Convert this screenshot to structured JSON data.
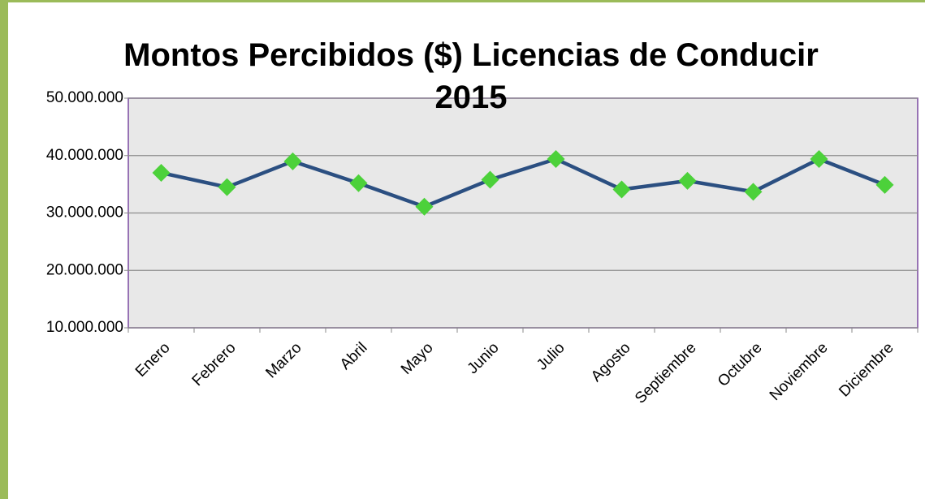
{
  "chart_data": {
    "type": "line",
    "title": "Montos Percibidos ($) Licencias de Conducir 2015",
    "categories": [
      "Enero",
      "Febrero",
      "Marzo",
      "Abril",
      "Mayo",
      "Junio",
      "Julio",
      "Agosto",
      "Septiembre",
      "Octubre",
      "Noviembre",
      "Diciembre"
    ],
    "series": [
      {
        "color": "#2b4f81",
        "marker_color": "#4cd13a",
        "values": [
          37000000,
          34500000,
          39000000,
          35200000,
          31100000,
          35800000,
          39400000,
          34100000,
          35600000,
          33700000,
          39400000,
          34900000
        ]
      }
    ],
    "ylim": [
      10000000,
      50000000
    ],
    "yticks": [
      {
        "value": 10000000,
        "label": "10.000.000"
      },
      {
        "value": 20000000,
        "label": "20.000.000"
      },
      {
        "value": 30000000,
        "label": "30.000.000"
      },
      {
        "value": 40000000,
        "label": "40.000.000"
      },
      {
        "value": 50000000,
        "label": "50.000.000"
      }
    ],
    "grid": true
  }
}
